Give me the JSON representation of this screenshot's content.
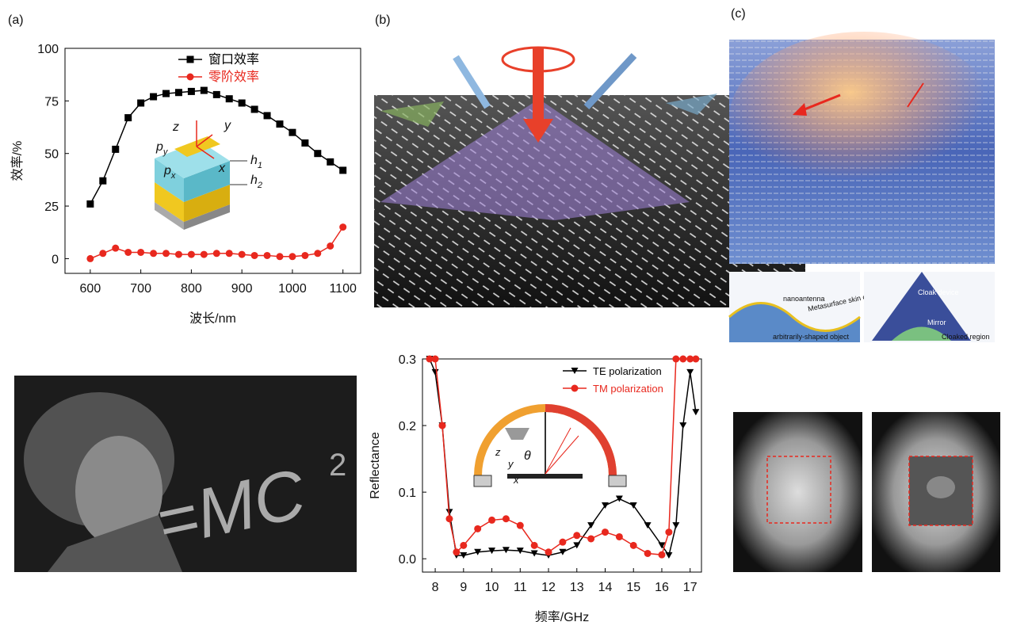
{
  "panel_labels": [
    "(a)",
    "(b)",
    "(c)"
  ],
  "inset_a": {
    "z": "z",
    "y": "y",
    "x": "x",
    "p": "p",
    "py_sub": "y",
    "px_sub": "x",
    "h": "h",
    "h1_sub": "1",
    "h2_sub": "2"
  },
  "inset_b": {
    "theta": "θ",
    "z": "z",
    "y": "y",
    "x": "x"
  },
  "image_text": {
    "emc": "=MC",
    "exp": "2"
  },
  "cloak_labels": {
    "nanoantenna": "nanoantenna",
    "skin": "Metasurface skin cloak",
    "object": "arbitrarily-shaped object",
    "device": "Cloak device",
    "mirror": "Mirror",
    "region": "Cloaked region"
  },
  "chart_data": [
    {
      "type": "line",
      "xlabel": "波长/nm",
      "ylabel": "效率/%",
      "legend": "upper right",
      "x": [
        600,
        625,
        650,
        675,
        700,
        725,
        750,
        775,
        800,
        825,
        850,
        875,
        900,
        925,
        950,
        975,
        1000,
        1025,
        1050,
        1075,
        1100
      ],
      "series": [
        {
          "name": "窗口效率",
          "color": "#000000",
          "marker": "square",
          "values": [
            26,
            37,
            52,
            67,
            74,
            77,
            78.5,
            79,
            79.5,
            80,
            78,
            76,
            74,
            71,
            68,
            64,
            60,
            55,
            50,
            46,
            42
          ]
        },
        {
          "name": "零阶效率",
          "color": "#e8281e",
          "marker": "circle",
          "values": [
            0,
            2.5,
            5,
            3,
            3,
            2.5,
            2.5,
            2,
            2,
            2,
            2.5,
            2.5,
            2,
            1.5,
            1.5,
            1,
            1,
            1.5,
            2.5,
            6,
            15
          ]
        }
      ],
      "xlim": [
        550,
        1135
      ],
      "xticks": [
        600,
        700,
        800,
        900,
        1000,
        1100
      ],
      "ylim": [
        -7,
        100
      ],
      "yticks": [
        0,
        25,
        50,
        75,
        100
      ]
    },
    {
      "type": "line",
      "xlabel": "频率/GHz",
      "ylabel": "Reflectance",
      "legend": "upper right",
      "x": [
        7.8,
        8,
        8.25,
        8.5,
        8.75,
        9,
        9.5,
        10,
        10.5,
        11,
        11.5,
        12,
        12.5,
        13,
        13.5,
        14,
        14.5,
        15,
        15.5,
        16,
        16.25,
        16.5,
        16.75,
        17,
        17.2
      ],
      "series": [
        {
          "name": "TE polarization",
          "color": "#000000",
          "marker": "triangle-down",
          "values": [
            0.3,
            0.28,
            0.2,
            0.07,
            0.005,
            0.005,
            0.01,
            0.012,
            0.013,
            0.012,
            0.008,
            0.005,
            0.01,
            0.02,
            0.05,
            0.08,
            0.09,
            0.08,
            0.05,
            0.02,
            0.005,
            0.05,
            0.2,
            0.28,
            0.22
          ]
        },
        {
          "name": "TM polarization",
          "color": "#e8281e",
          "marker": "circle",
          "values": [
            0.3,
            0.3,
            0.2,
            0.06,
            0.01,
            0.02,
            0.045,
            0.058,
            0.06,
            0.05,
            0.02,
            0.01,
            0.025,
            0.035,
            0.03,
            0.04,
            0.033,
            0.02,
            0.008,
            0.006,
            0.04,
            0.3,
            0.3,
            0.3,
            0.3
          ]
        }
      ],
      "xlim": [
        7.55,
        17.4
      ],
      "xticks": [
        8,
        9,
        10,
        11,
        12,
        13,
        14,
        15,
        16,
        17
      ],
      "ylim": [
        -0.02,
        0.3
      ],
      "yticks": [
        {
          "value": 0,
          "label": "0.0"
        },
        0.1,
        0.2,
        0.3
      ]
    }
  ]
}
